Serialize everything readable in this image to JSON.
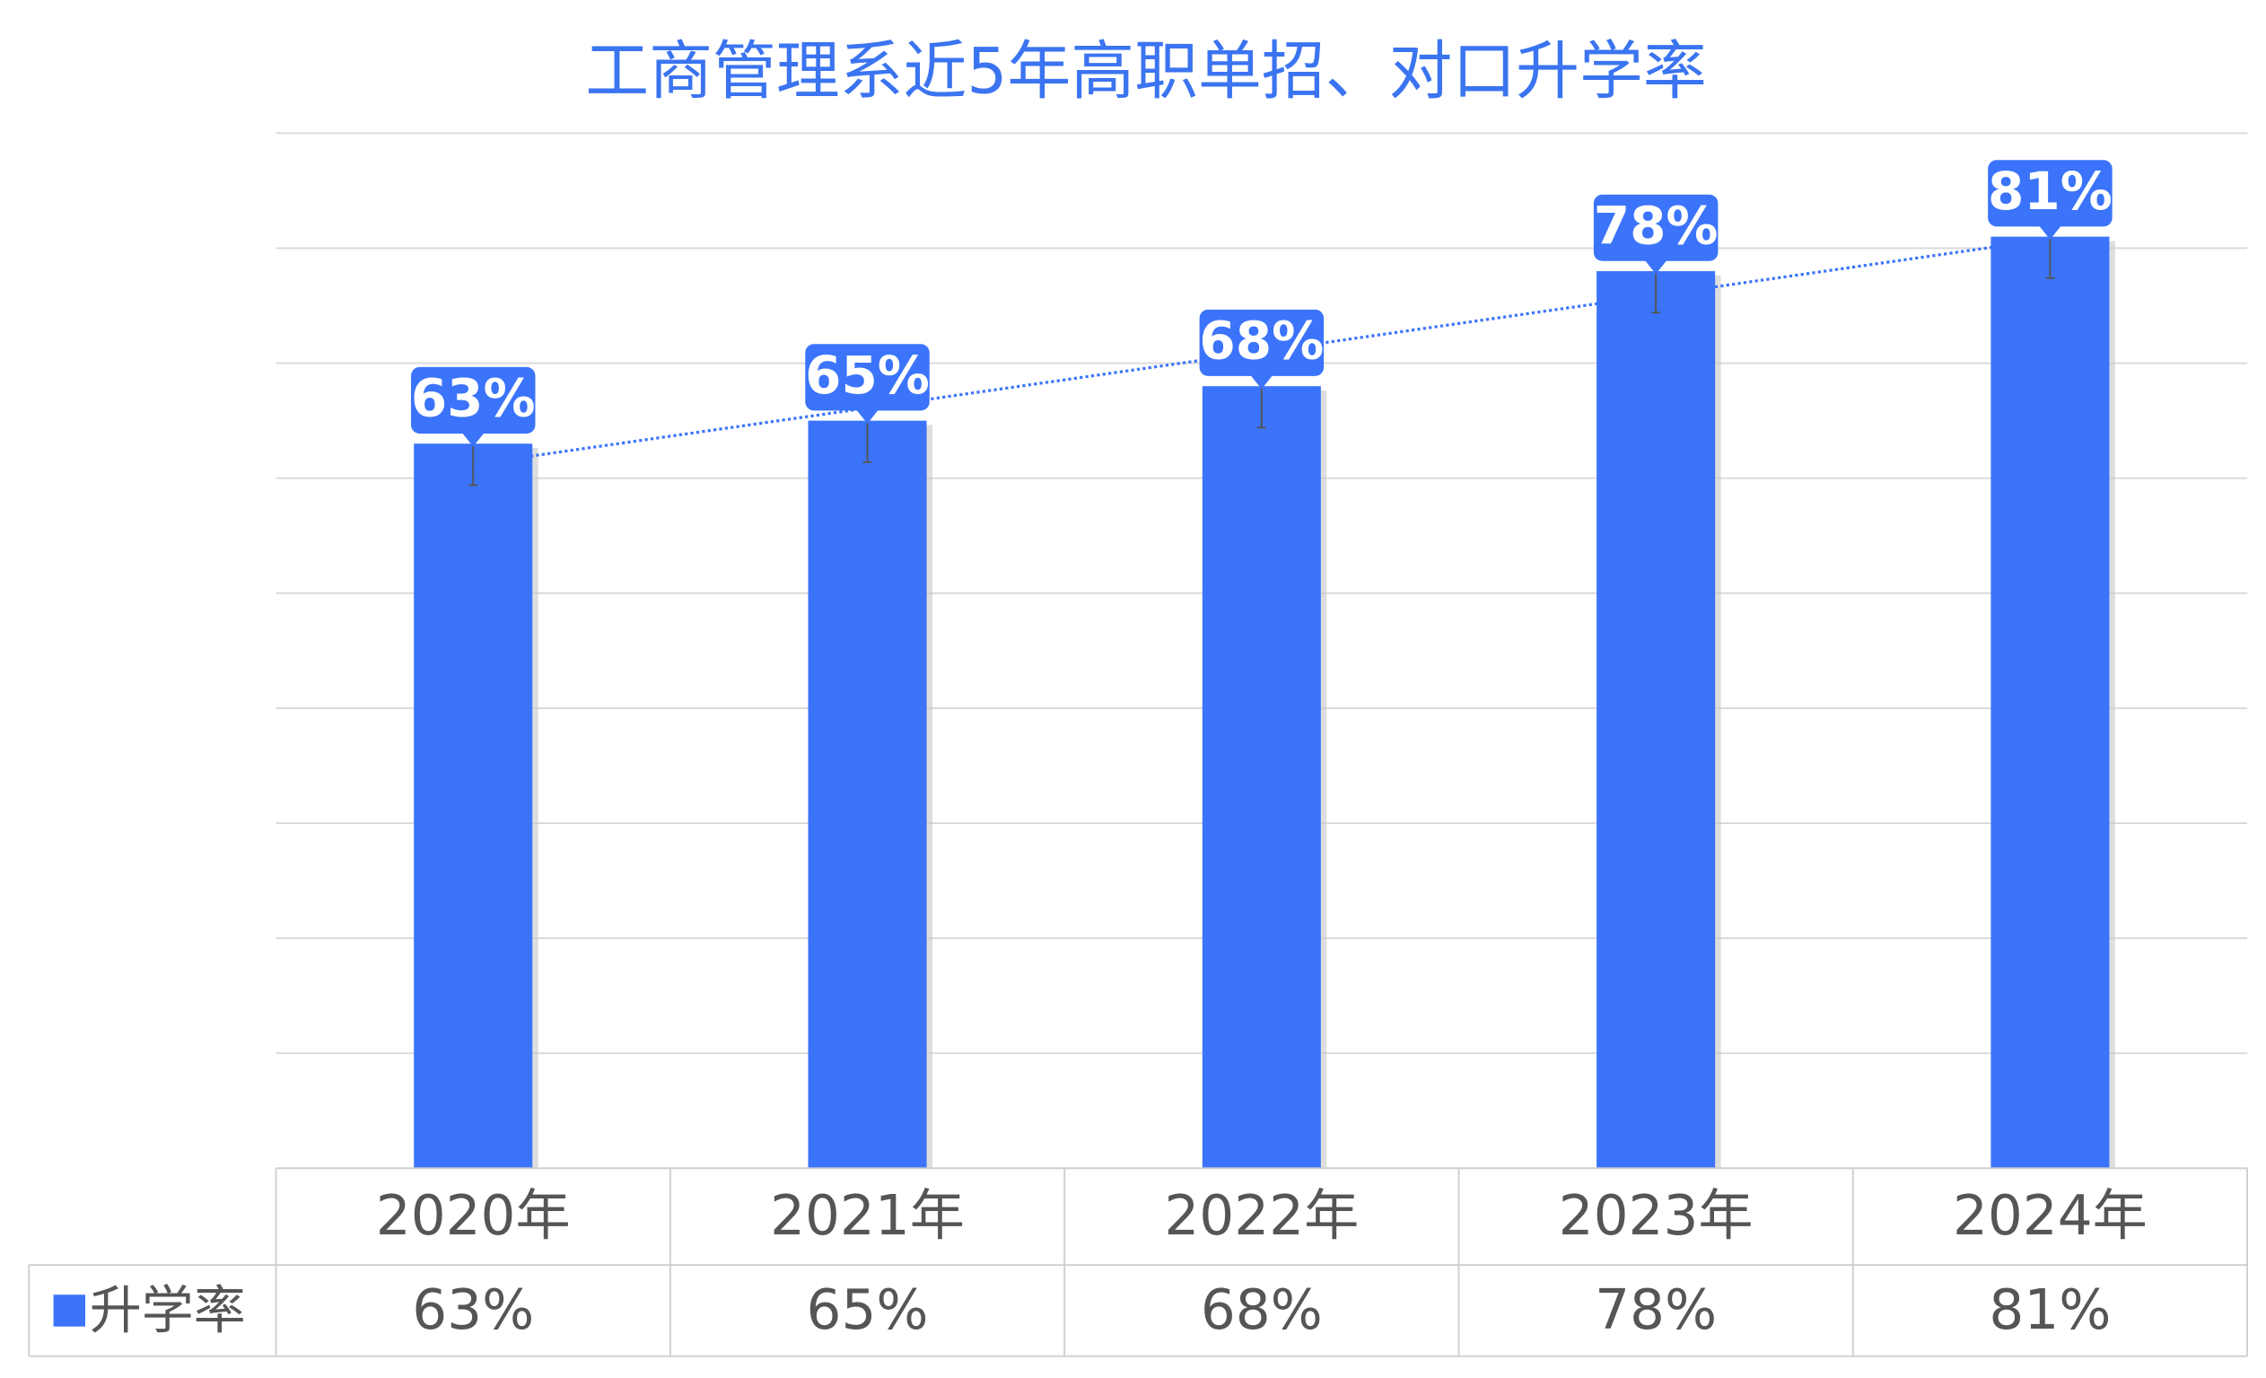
{
  "chart_data": {
    "type": "bar",
    "title": "工商管理系近5年高职单招、对口升学率",
    "categories": [
      "2020年",
      "2021年",
      "2022年",
      "2023年",
      "2024年"
    ],
    "series": [
      {
        "name": "升学率",
        "color": "#3b74fa",
        "values": [
          63,
          65,
          68,
          78,
          81
        ],
        "value_labels": [
          "63%",
          "65%",
          "68%",
          "78%",
          "81%"
        ],
        "errors": [
          3.6,
          3.6,
          3.6,
          3.6,
          3.6
        ]
      }
    ],
    "ylim": [
      0,
      90
    ],
    "yticks": [
      0,
      10,
      20,
      30,
      40,
      50,
      60,
      70,
      80,
      90
    ],
    "ytick_labels": false,
    "grid": true,
    "trendline": true,
    "data_table": true
  }
}
